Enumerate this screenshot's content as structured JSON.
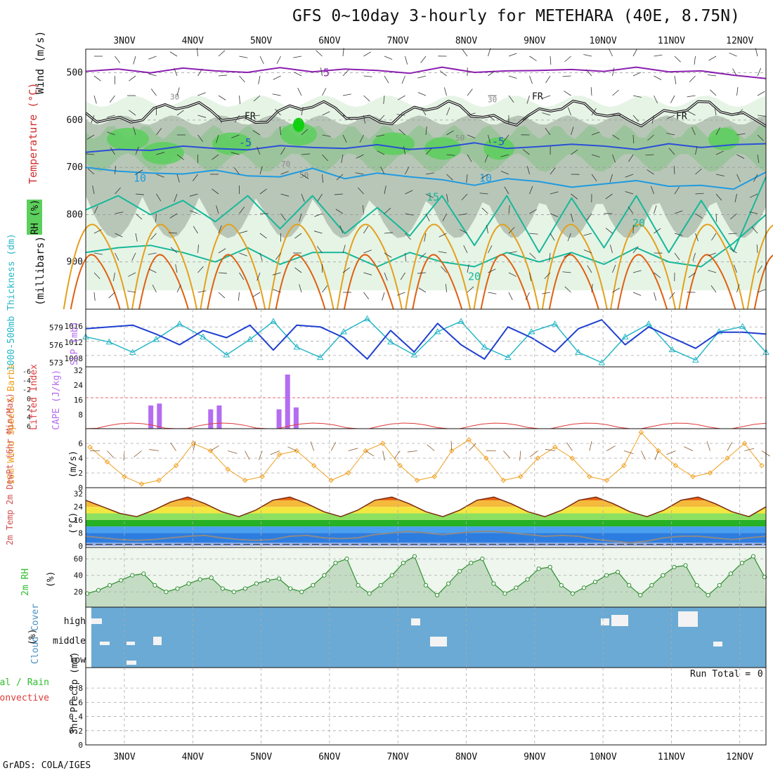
{
  "title": "GFS 0~10day 3-hourly for METEHARA (40E, 8.75N)",
  "credit": "GrADS: COLA/IGES",
  "run_total_label": "Run Total =",
  "run_total_value": "0",
  "days": [
    "3NOV",
    "4NOV",
    "5NOV",
    "6NOV",
    "7NOV",
    "8NOV",
    "9NOV",
    "10NOV",
    "11NOV",
    "12NOV"
  ],
  "colors": {
    "background": "#ffffff",
    "rh_fill": "#5ccf5c",
    "rh_grey": "#b8c6b8",
    "rh_pale": "#e6f4e6",
    "temp_5": "#8b1fb0",
    "temp_minus5": "#2a4fd8",
    "temp_10": "#1f9bdf",
    "temp_15": "#17b899",
    "temp_25": "#e4a01b",
    "temp_30": "#e06010",
    "freezing": "#111111",
    "slp": "#1f3fd0",
    "thickness": "#27b7c7",
    "cape": "#b56cf0",
    "lifted_index": "#e03a3a",
    "wind_speed": "#f0a020",
    "barb": "#8a5a30",
    "temp2m": "#7a2a10",
    "dewpoint": "#8a8a8a",
    "rh2m": "#2fbf2f",
    "cloud": "#6aaad4",
    "precip": "#2fbf2f"
  },
  "chart_data": [
    {
      "type": "line",
      "name": "upper-air",
      "ylabel": "(millibars)",
      "axis_labels": {
        "rh": "RH (%)",
        "temperature": "Temperature (°C)",
        "wind": "Wind (m/s)"
      },
      "ylim": [
        1000,
        450
      ],
      "yticks": [
        500,
        600,
        700,
        800,
        900
      ],
      "contour_labels": [
        "5",
        "-5",
        "10",
        "15",
        "20",
        "30",
        "50",
        "70",
        "FR"
      ],
      "series": [
        {
          "name": "5",
          "pressure": [
            497,
            492,
            500,
            490,
            496,
            499,
            489,
            498,
            492,
            495,
            501,
            488,
            499,
            496,
            495,
            493,
            497,
            488,
            498,
            496,
            505,
            512
          ]
        },
        {
          "name": "-5",
          "pressure": [
            668,
            662,
            664,
            655,
            660,
            663,
            654,
            658,
            660,
            652,
            662,
            658,
            648,
            660,
            656,
            651,
            655,
            662,
            650,
            658,
            652,
            650
          ]
        },
        {
          "name": "10",
          "pressure": [
            700,
            708,
            712,
            714,
            706,
            718,
            720,
            702,
            724,
            712,
            720,
            726,
            738,
            724,
            730,
            742,
            735,
            728,
            740,
            738,
            746,
            710
          ]
        },
        {
          "name": "15",
          "pressure": [
            790,
            760,
            800,
            770,
            815,
            760,
            830,
            760,
            840,
            785,
            845,
            760,
            865,
            760,
            880,
            765,
            870,
            760,
            880,
            770,
            878,
            720
          ]
        },
        {
          "name": "20",
          "pressure": [
            880,
            870,
            865,
            880,
            900,
            870,
            905,
            880,
            880,
            910,
            880,
            900,
            910,
            880,
            900,
            880,
            905,
            870,
            900,
            910,
            860,
            800
          ]
        }
      ]
    },
    {
      "type": "line",
      "name": "thickness-slp",
      "axis_labels": {
        "left": "1000-500mb Thickness (dm)",
        "right": "SLP (mb)"
      },
      "thickness_ticks": [
        "579",
        "576",
        "573"
      ],
      "slp_ticks": [
        "1016",
        "1012",
        "1008"
      ],
      "series": [
        {
          "name": "SLP (mb)",
          "values": [
            1015.5,
            1016,
            1016.5,
            1014,
            1011,
            1015,
            1013,
            1016.5,
            1009.5,
            1016.5,
            1016,
            1013,
            1007,
            1015,
            1009,
            1017,
            1011,
            1007,
            1016,
            1013,
            1009,
            1015.5,
            1018,
            1011,
            1016,
            1013,
            1010,
            1014.5,
            1014.5,
            1014
          ]
        },
        {
          "name": "Thickness (dm)",
          "values": [
            577,
            576,
            574,
            576.5,
            579.5,
            577,
            573.5,
            576.5,
            580,
            575,
            573,
            578,
            580.5,
            576,
            573.5,
            578,
            580,
            575,
            573,
            578,
            579.5,
            574,
            572,
            577,
            579.5,
            574.5,
            572.5,
            578,
            579,
            574
          ]
        }
      ]
    },
    {
      "type": "bar",
      "name": "cape-li",
      "axis_labels": {
        "left": "Lifted Index",
        "right": "CAPE (J/kg)"
      },
      "li_ticks": [
        "6",
        "4",
        "2",
        "0",
        "-2",
        "-4",
        "-6"
      ],
      "cape_ticks": [
        "8",
        "16",
        "24",
        "32"
      ],
      "cape": [
        {
          "day": "3NOV",
          "hour": 21,
          "value": 12
        },
        {
          "day": "4NOV",
          "hour": 0,
          "value": 13
        },
        {
          "day": "4NOV",
          "hour": 18,
          "value": 10
        },
        {
          "day": "4NOV",
          "hour": 21,
          "value": 12
        },
        {
          "day": "5NOV",
          "hour": 18,
          "value": 10
        },
        {
          "day": "5NOV",
          "hour": 21,
          "value": 28
        },
        {
          "day": "6NOV",
          "hour": 0,
          "value": 11
        }
      ],
      "lifted_index_label": "Lifted Index"
    },
    {
      "type": "line",
      "name": "wind10m",
      "axis_labels": {
        "left": "10m Wind Speed & Barbs",
        "unit": "(m/s)"
      },
      "yticks": [
        "0",
        "2",
        "4",
        "6"
      ],
      "series": [
        {
          "name": "Speed",
          "values": [
            5.5,
            3.5,
            1.5,
            0.5,
            1,
            3,
            6,
            5,
            2.5,
            1,
            1.5,
            4.5,
            5,
            3,
            1,
            2,
            5,
            6,
            3,
            1,
            1.5,
            5,
            6.5,
            4,
            1,
            1.5,
            4,
            5.5,
            4,
            1.5,
            1,
            3,
            7.5,
            5,
            3,
            1.5,
            2,
            4,
            6,
            3
          ]
        }
      ]
    },
    {
      "type": "area",
      "name": "temp2m",
      "axis_labels": {
        "left": "2m Temp 2m DewPt (6hr Min/Max)",
        "unit": "(°C)"
      },
      "yticks": [
        "0",
        "8",
        "16",
        "24",
        "32"
      ],
      "series": [
        {
          "name": "2m Temp",
          "values": [
            28,
            24,
            20,
            18,
            22,
            27,
            30,
            26,
            21,
            18,
            22,
            28,
            30,
            26,
            21,
            18,
            22,
            28,
            30,
            26,
            21,
            18,
            22,
            28,
            30,
            26,
            21,
            18,
            22,
            28,
            30,
            26,
            21,
            18,
            22,
            28,
            30,
            26,
            21,
            18,
            24
          ]
        },
        {
          "name": "2m DewPt",
          "values": [
            6,
            5,
            4,
            3.5,
            4,
            5,
            6,
            6.5,
            5,
            4,
            3.5,
            4,
            6,
            6.5,
            5,
            4.5,
            5,
            7,
            8,
            9,
            8,
            7,
            8,
            9,
            9,
            8,
            7,
            6,
            6.5,
            6,
            4,
            3,
            2,
            3,
            5,
            6,
            6,
            5,
            4,
            5,
            6
          ]
        }
      ]
    },
    {
      "type": "area",
      "name": "rh2m",
      "axis_labels": {
        "left": "2m RH",
        "unit": "(%)"
      },
      "yticks": [
        "20",
        "40",
        "60"
      ],
      "series": [
        {
          "name": "2m RH",
          "values": [
            18,
            22,
            28,
            34,
            40,
            42,
            28,
            20,
            24,
            30,
            35,
            37,
            24,
            20,
            24,
            30,
            34,
            36,
            24,
            20,
            28,
            40,
            55,
            60,
            28,
            18,
            28,
            40,
            55,
            63,
            28,
            16,
            30,
            45,
            55,
            60,
            30,
            18,
            25,
            35,
            48,
            50,
            28,
            18,
            25,
            32,
            40,
            44,
            28,
            16,
            28,
            40,
            50,
            52,
            28,
            16,
            28,
            42,
            55,
            63,
            38
          ]
        }
      ]
    },
    {
      "type": "heatmap",
      "name": "cloud-cover",
      "axis_labels": {
        "left": "Cloud Cover",
        "unit": "(%)"
      },
      "levels": [
        "high",
        "middle",
        "low"
      ]
    },
    {
      "type": "bar",
      "name": "precip",
      "axis_labels": {
        "left": "Total / Rain",
        "left2": "Convective",
        "unit": "3hr Precip (mm)"
      },
      "yticks": [
        "0",
        "0.2",
        "0.4",
        "0.6",
        "0.8"
      ],
      "values": [
        0,
        0,
        0,
        0,
        0,
        0,
        0,
        0,
        0,
        0
      ]
    }
  ]
}
